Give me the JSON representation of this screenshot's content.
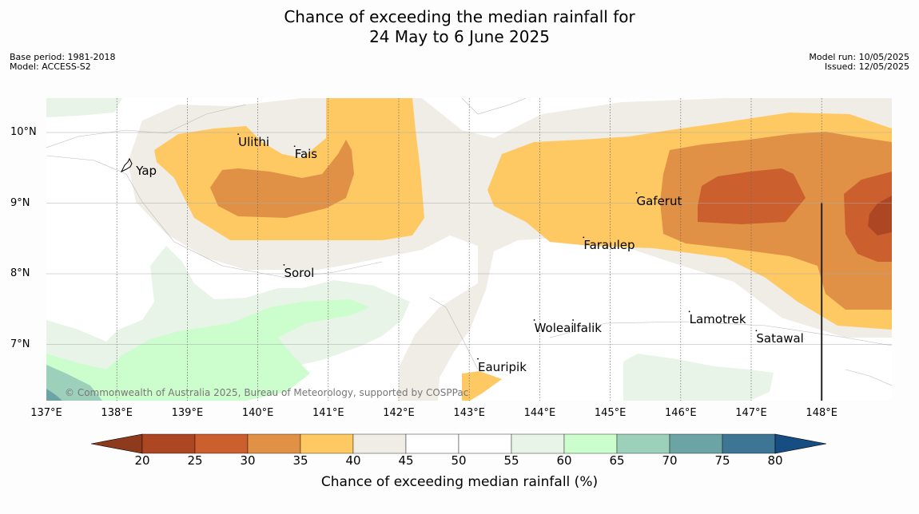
{
  "title": {
    "line1": "Chance of exceeding the median rainfall for",
    "line2": "24 May to 6 June 2025"
  },
  "meta": {
    "base_period": "Base period: 1981-2018",
    "model": "Model: ACCESS-S2",
    "model_run": "Model run: 10/05/2025",
    "issued": "Issued: 12/05/2025"
  },
  "map": {
    "lon_range": [
      137,
      149
    ],
    "lat_range": [
      6.2,
      10.5
    ],
    "x_ticks": [
      "137°E",
      "138°E",
      "139°E",
      "140°E",
      "141°E",
      "142°E",
      "143°E",
      "144°E",
      "145°E",
      "146°E",
      "147°E",
      "148°E"
    ],
    "x_tick_values": [
      137,
      138,
      139,
      140,
      141,
      142,
      143,
      144,
      145,
      146,
      147,
      148
    ],
    "y_ticks": [
      "10°N",
      "9°N",
      "8°N",
      "7°N"
    ],
    "y_tick_values": [
      10,
      9,
      8,
      7
    ],
    "places": [
      {
        "name": "Yap",
        "lon": 138.25,
        "lat": 9.52
      },
      {
        "name": "Ulithi",
        "lon": 139.7,
        "lat": 9.93
      },
      {
        "name": "Fais",
        "lon": 140.5,
        "lat": 9.76
      },
      {
        "name": "Sorol",
        "lon": 140.35,
        "lat": 8.08
      },
      {
        "name": "Gaferut",
        "lon": 145.35,
        "lat": 9.1
      },
      {
        "name": "Faraulep",
        "lon": 144.6,
        "lat": 8.47
      },
      {
        "name": "Woleai",
        "lon": 143.9,
        "lat": 7.3
      },
      {
        "name": "Ifalik",
        "lon": 144.45,
        "lat": 7.3
      },
      {
        "name": "Lamotrek",
        "lon": 146.1,
        "lat": 7.42
      },
      {
        "name": "Satawal",
        "lon": 147.05,
        "lat": 7.15
      },
      {
        "name": "Eauripik",
        "lon": 143.1,
        "lat": 6.75
      }
    ],
    "copyright": "© Commonwealth of Australia 2025, Bureau of Meteorology, supported by COSPPac"
  },
  "colorbar": {
    "label": "Chance of exceeding median rainfall (%)",
    "ticks": [
      "20",
      "25",
      "30",
      "35",
      "40",
      "45",
      "50",
      "55",
      "60",
      "65",
      "70",
      "75",
      "80"
    ],
    "colors": {
      "lt20": "#8e3a1c",
      "20-25": "#ad4622",
      "25-30": "#cb602e",
      "30-35": "#e09145",
      "35-40": "#fec963",
      "40-45": "#f0ece6",
      "45-50": "#ffffff",
      "50-55": "#ffffff",
      "55-60": "#e8f4e8",
      "60-65": "#ccfdcc",
      "65-70": "#9dd0ba",
      "70-75": "#6ca4a6",
      "75-80": "#3f7594",
      "gt80": "#164d82"
    }
  }
}
